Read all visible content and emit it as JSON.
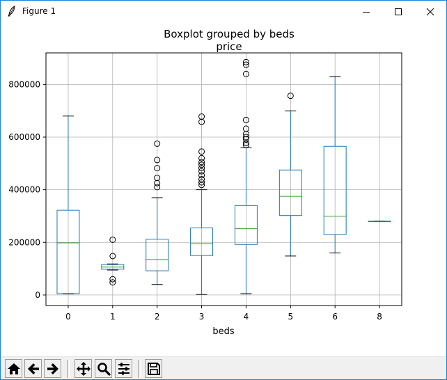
{
  "window": {
    "title": "Figure 1"
  },
  "toolbar": {
    "buttons": [
      {
        "name": "home-button",
        "icon": "home-icon"
      },
      {
        "name": "back-button",
        "icon": "back-arrow-icon"
      },
      {
        "name": "forward-button",
        "icon": "forward-arrow-icon"
      },
      {
        "name": "pan-button",
        "icon": "move-icon"
      },
      {
        "name": "zoom-button",
        "icon": "zoom-icon"
      },
      {
        "name": "subplots-button",
        "icon": "sliders-icon"
      },
      {
        "name": "save-button",
        "icon": "save-icon"
      }
    ]
  },
  "chart_data": {
    "type": "box",
    "title": "Boxplot grouped by beds",
    "subtitle": "price",
    "xlabel": "beds",
    "ylabel": "",
    "ylim": [
      -40000,
      920000
    ],
    "yticks": [
      0,
      200000,
      400000,
      600000,
      800000
    ],
    "grid": true,
    "colors": {
      "box": "#1f77b4",
      "median": "#2ca02c",
      "whisker_cap": "#000000",
      "flier": "#000000",
      "grid": "#b0b0b0"
    },
    "boxes": [
      {
        "label": "0",
        "whisker_low": 5000,
        "q1": 5000,
        "median": 198000,
        "q3": 322000,
        "whisker_high": 680000,
        "fliers": []
      },
      {
        "label": "1",
        "whisker_low": 95000,
        "q1": 98000,
        "median": 106000,
        "q3": 116000,
        "whisker_high": 118000,
        "fliers": [
          210000,
          148000,
          60000,
          48000
        ]
      },
      {
        "label": "2",
        "whisker_low": 40000,
        "q1": 92000,
        "median": 135000,
        "q3": 212000,
        "whisker_high": 370000,
        "fliers": [
          575000,
          513000,
          482000,
          445000,
          425000,
          410000
        ]
      },
      {
        "label": "3",
        "whisker_low": 2000,
        "q1": 150000,
        "median": 195000,
        "q3": 255000,
        "whisker_high": 400000,
        "fliers": [
          678000,
          658000,
          545000,
          520000,
          505000,
          495000,
          482000,
          470000,
          455000,
          440000,
          428000,
          418000
        ]
      },
      {
        "label": "4",
        "whisker_low": 5000,
        "q1": 192000,
        "median": 252000,
        "q3": 340000,
        "whisker_high": 560000,
        "fliers": [
          885000,
          875000,
          840000,
          665000,
          632000,
          612000,
          600000,
          592000,
          578000,
          570000
        ]
      },
      {
        "label": "5",
        "whisker_low": 148000,
        "q1": 302000,
        "median": 375000,
        "q3": 475000,
        "whisker_high": 700000,
        "fliers": [
          757000
        ]
      },
      {
        "label": "6",
        "whisker_low": 160000,
        "q1": 230000,
        "median": 300000,
        "q3": 565000,
        "whisker_high": 830000,
        "fliers": []
      },
      {
        "label": "8",
        "whisker_low": 280000,
        "q1": 280000,
        "median": 280000,
        "q3": 281000,
        "whisker_high": 281000,
        "fliers": []
      }
    ]
  }
}
